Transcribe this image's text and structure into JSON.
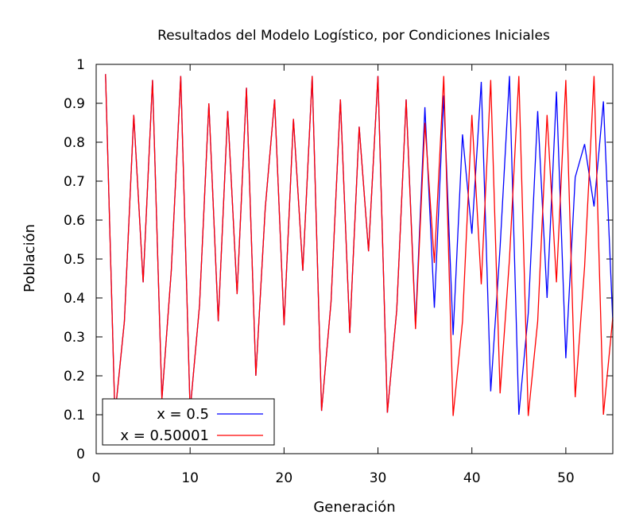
{
  "chart_data": {
    "type": "line",
    "title": "Resultados del Modelo Logístico, por Condiciones Iniciales",
    "xlabel": "Generación",
    "ylabel": "Población",
    "xlim": [
      0,
      55
    ],
    "ylim": [
      0,
      1
    ],
    "x_ticks": [
      0,
      10,
      20,
      30,
      40,
      50
    ],
    "y_ticks": [
      0,
      0.1,
      0.2,
      0.3,
      0.4,
      0.5,
      0.6,
      0.7,
      0.8,
      0.9,
      1
    ],
    "grid": false,
    "legend_position": "bottom-left",
    "x": [
      1,
      2,
      3,
      4,
      5,
      6,
      7,
      8,
      9,
      10,
      11,
      12,
      13,
      14,
      15,
      16,
      17,
      18,
      19,
      20,
      21,
      22,
      23,
      24,
      25,
      26,
      27,
      28,
      29,
      30,
      31,
      32,
      33,
      34,
      35,
      36,
      37,
      38,
      39,
      40,
      41,
      42,
      43,
      44,
      45,
      46,
      47,
      48,
      49,
      50,
      51,
      52,
      53,
      54,
      55
    ],
    "series": [
      {
        "name": "x = 0.5",
        "color": "#0000ff",
        "values": [
          0.975,
          0.097,
          0.34,
          0.87,
          0.44,
          0.96,
          0.14,
          0.47,
          0.97,
          0.11,
          0.38,
          0.9,
          0.34,
          0.88,
          0.41,
          0.94,
          0.2,
          0.63,
          0.91,
          0.33,
          0.86,
          0.47,
          0.97,
          0.11,
          0.39,
          0.91,
          0.31,
          0.84,
          0.52,
          0.97,
          0.105,
          0.37,
          0.91,
          0.33,
          0.89,
          0.375,
          0.92,
          0.305,
          0.82,
          0.565,
          0.955,
          0.16,
          0.53,
          0.97,
          0.1,
          0.36,
          0.88,
          0.4,
          0.93,
          0.245,
          0.71,
          0.795,
          0.635,
          0.905,
          0.34
        ]
      },
      {
        "name": "x = 0.50001",
        "color": "#ff0000",
        "values": [
          0.975,
          0.097,
          0.34,
          0.87,
          0.44,
          0.96,
          0.14,
          0.47,
          0.97,
          0.11,
          0.38,
          0.9,
          0.34,
          0.88,
          0.41,
          0.94,
          0.2,
          0.63,
          0.91,
          0.33,
          0.86,
          0.47,
          0.97,
          0.11,
          0.39,
          0.91,
          0.31,
          0.84,
          0.52,
          0.97,
          0.105,
          0.37,
          0.91,
          0.32,
          0.85,
          0.49,
          0.97,
          0.097,
          0.34,
          0.87,
          0.435,
          0.96,
          0.155,
          0.5,
          0.97,
          0.097,
          0.34,
          0.87,
          0.44,
          0.96,
          0.145,
          0.48,
          0.97,
          0.1,
          0.35
        ]
      }
    ]
  }
}
